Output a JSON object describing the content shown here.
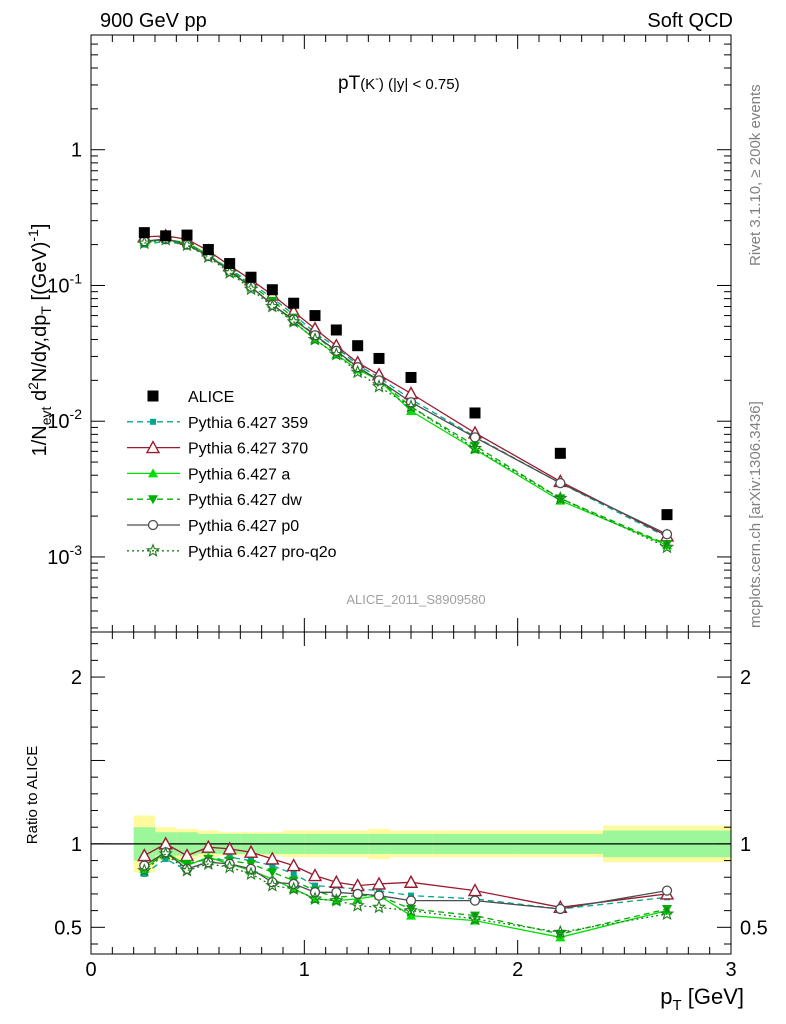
{
  "header": {
    "left": "900 GeV pp",
    "right": "Soft QCD"
  },
  "side_labels": {
    "rivet": "Rivet 3.1.10, ≥ 200k events",
    "source": "mcplots.cern.ch [arXiv:1306.3436]"
  },
  "plot_title_main": "pT",
  "plot_title_species": "(K",
  "plot_title_charge": "-",
  "plot_title_close": ")",
  "plot_title_cut": " (|y| < 0.75)",
  "analysis_id": "ALICE_2011_S8909580",
  "chart_data": [
    {
      "type": "line",
      "panel": "main",
      "yscale": "log",
      "ylabel_parts": {
        "a": "1/N",
        "a_sub": "evt",
        "b": " d",
        "b_sup": "2",
        "c": "N/dy,dp",
        "c_sub": "T",
        "d": " [(GeV)",
        "d_sup": "-1",
        "e": "]"
      },
      "xlim": [
        0,
        3
      ],
      "ylim": [
        0.00028,
        7
      ],
      "yticks": [
        {
          "value": 0.001,
          "base": "10",
          "exp": "-3"
        },
        {
          "value": 0.01,
          "base": "10",
          "exp": "-2"
        },
        {
          "value": 0.1,
          "base": "10",
          "exp": "-1"
        },
        {
          "value": 1,
          "base": "1",
          "exp": ""
        }
      ],
      "x": [
        0.25,
        0.35,
        0.45,
        0.55,
        0.65,
        0.75,
        0.85,
        0.95,
        1.05,
        1.15,
        1.25,
        1.35,
        1.5,
        1.8,
        2.2,
        2.7
      ],
      "series": [
        {
          "name": "ALICE",
          "color": "#000000",
          "marker": "square",
          "line": "none",
          "values": [
            0.245,
            0.232,
            0.235,
            0.184,
            0.145,
            0.115,
            0.093,
            0.074,
            0.06,
            0.047,
            0.036,
            0.029,
            0.021,
            0.0115,
            0.0058,
            0.00205
          ]
        },
        {
          "name": "Pythia 6.427 359",
          "color": "#00a88f",
          "marker": "small-square",
          "line": "dashed",
          "values": [
            0.2,
            0.212,
            0.198,
            0.165,
            0.133,
            0.104,
            0.081,
            0.061,
            0.045,
            0.035,
            0.026,
            0.021,
            0.0145,
            0.0077,
            0.0035,
            0.0014
          ]
        },
        {
          "name": "Pythia 6.427 370",
          "color": "#9a1b2f",
          "marker": "open-triangle",
          "line": "solid",
          "values": [
            0.228,
            0.232,
            0.219,
            0.18,
            0.14,
            0.11,
            0.085,
            0.064,
            0.048,
            0.036,
            0.027,
            0.022,
            0.016,
            0.0082,
            0.0036,
            0.00143
          ]
        },
        {
          "name": "Pythia 6.427 a",
          "color": "#00e000",
          "marker": "triangle",
          "line": "solid",
          "values": [
            0.208,
            0.22,
            0.204,
            0.17,
            0.127,
            0.097,
            0.073,
            0.054,
            0.04,
            0.031,
            0.024,
            0.02,
            0.0119,
            0.0062,
            0.0026,
            0.00122
          ]
        },
        {
          "name": "Pythia 6.427 dw",
          "color": "#00b000",
          "marker": "down-triangle",
          "line": "dashed",
          "values": [
            0.21,
            0.218,
            0.207,
            0.168,
            0.13,
            0.101,
            0.077,
            0.058,
            0.043,
            0.032,
            0.025,
            0.02,
            0.0128,
            0.0066,
            0.0027,
            0.00124
          ]
        },
        {
          "name": "Pythia 6.427 p0",
          "color": "#4d4d4d",
          "marker": "open-circle",
          "line": "solid",
          "values": [
            0.212,
            0.22,
            0.2,
            0.165,
            0.128,
            0.098,
            0.072,
            0.056,
            0.043,
            0.033,
            0.025,
            0.02,
            0.0138,
            0.0076,
            0.0035,
            0.00147
          ]
        },
        {
          "name": "Pythia 6.427 pro-q2o",
          "color": "#1e7d1e",
          "marker": "star",
          "line": "dotted",
          "values": [
            0.205,
            0.218,
            0.198,
            0.162,
            0.124,
            0.094,
            0.07,
            0.054,
            0.04,
            0.031,
            0.023,
            0.018,
            0.0128,
            0.0063,
            0.0027,
            0.00118
          ]
        }
      ]
    },
    {
      "type": "line",
      "panel": "ratio",
      "ylabel": "Ratio to ALICE",
      "xlabel_main": "p",
      "xlabel_sub": "T",
      "xlabel_unit": " [GeV]",
      "xlim": [
        0,
        3
      ],
      "ylim": [
        0.34,
        2.27
      ],
      "xticks": [
        "0",
        "1",
        "2",
        "3"
      ],
      "yticks": [
        {
          "value": 0.5,
          "label": "0.5"
        },
        {
          "value": 1,
          "label": "1"
        },
        {
          "value": 2,
          "label": "2"
        }
      ],
      "reference_band": [
        {
          "x0": 0.2,
          "x1": 0.3,
          "inner": 0.1,
          "outer": 0.17
        },
        {
          "x0": 0.3,
          "x1": 0.4,
          "inner": 0.07,
          "outer": 0.1
        },
        {
          "x0": 0.4,
          "x1": 0.5,
          "inner": 0.07,
          "outer": 0.09
        },
        {
          "x0": 0.5,
          "x1": 0.6,
          "inner": 0.06,
          "outer": 0.08
        },
        {
          "x0": 0.6,
          "x1": 0.7,
          "inner": 0.06,
          "outer": 0.07
        },
        {
          "x0": 0.7,
          "x1": 0.8,
          "inner": 0.06,
          "outer": 0.07
        },
        {
          "x0": 0.8,
          "x1": 0.9,
          "inner": 0.06,
          "outer": 0.07
        },
        {
          "x0": 0.9,
          "x1": 1.0,
          "inner": 0.06,
          "outer": 0.08
        },
        {
          "x0": 1.0,
          "x1": 1.1,
          "inner": 0.06,
          "outer": 0.08
        },
        {
          "x0": 1.1,
          "x1": 1.2,
          "inner": 0.06,
          "outer": 0.08
        },
        {
          "x0": 1.2,
          "x1": 1.3,
          "inner": 0.06,
          "outer": 0.08
        },
        {
          "x0": 1.3,
          "x1": 1.4,
          "inner": 0.06,
          "outer": 0.09
        },
        {
          "x0": 1.4,
          "x1": 1.6,
          "inner": 0.06,
          "outer": 0.08
        },
        {
          "x0": 1.6,
          "x1": 2.0,
          "inner": 0.06,
          "outer": 0.08
        },
        {
          "x0": 2.0,
          "x1": 2.4,
          "inner": 0.06,
          "outer": 0.08
        },
        {
          "x0": 2.4,
          "x1": 3.0,
          "inner": 0.08,
          "outer": 0.11
        }
      ],
      "x": [
        0.25,
        0.35,
        0.45,
        0.55,
        0.65,
        0.75,
        0.85,
        0.95,
        1.05,
        1.15,
        1.25,
        1.35,
        1.5,
        1.8,
        2.2,
        2.7
      ],
      "series": [
        {
          "name": "Pythia 6.427 359",
          "color": "#00a88f",
          "marker": "small-square",
          "line": "dashed",
          "values": [
            0.82,
            0.91,
            0.84,
            0.9,
            0.92,
            0.9,
            0.87,
            0.82,
            0.75,
            0.74,
            0.73,
            0.72,
            0.69,
            0.67,
            0.61,
            0.68
          ]
        },
        {
          "name": "Pythia 6.427 370",
          "color": "#9a1b2f",
          "marker": "open-triangle",
          "line": "solid",
          "values": [
            0.93,
            1.0,
            0.93,
            0.98,
            0.97,
            0.95,
            0.91,
            0.87,
            0.81,
            0.77,
            0.75,
            0.76,
            0.77,
            0.72,
            0.62,
            0.7
          ]
        },
        {
          "name": "Pythia 6.427 a",
          "color": "#00e000",
          "marker": "triangle",
          "line": "solid",
          "values": [
            0.85,
            0.95,
            0.87,
            0.92,
            0.88,
            0.84,
            0.79,
            0.73,
            0.67,
            0.66,
            0.67,
            0.69,
            0.57,
            0.54,
            0.44,
            0.6
          ]
        },
        {
          "name": "Pythia 6.427 dw",
          "color": "#00b000",
          "marker": "down-triangle",
          "line": "dashed",
          "values": [
            0.86,
            0.94,
            0.88,
            0.91,
            0.9,
            0.88,
            0.83,
            0.78,
            0.72,
            0.68,
            0.69,
            0.69,
            0.61,
            0.57,
            0.46,
            0.61
          ]
        },
        {
          "name": "Pythia 6.427 p0",
          "color": "#4d4d4d",
          "marker": "open-circle",
          "line": "solid",
          "values": [
            0.87,
            0.95,
            0.85,
            0.89,
            0.88,
            0.85,
            0.77,
            0.76,
            0.71,
            0.71,
            0.7,
            0.69,
            0.66,
            0.66,
            0.61,
            0.72
          ]
        },
        {
          "name": "Pythia 6.427 pro-q2o",
          "color": "#1e7d1e",
          "marker": "star",
          "line": "dotted",
          "values": [
            0.84,
            0.94,
            0.84,
            0.88,
            0.86,
            0.82,
            0.75,
            0.73,
            0.67,
            0.66,
            0.63,
            0.62,
            0.6,
            0.55,
            0.47,
            0.58
          ]
        }
      ]
    }
  ]
}
